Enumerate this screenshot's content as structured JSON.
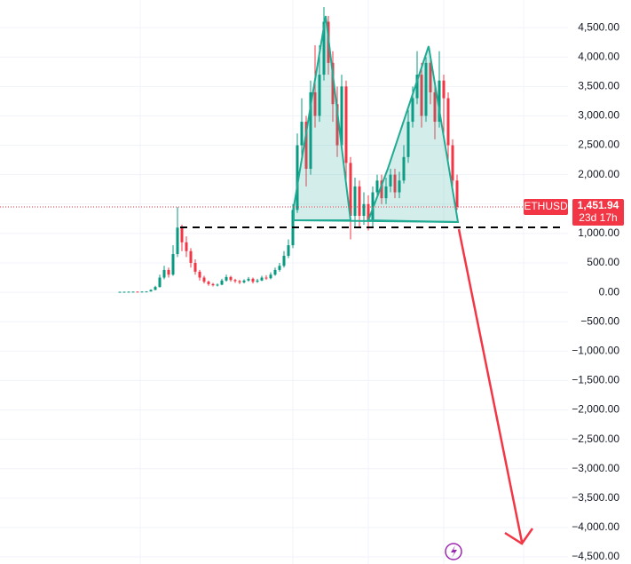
{
  "chart_data": {
    "type": "candlestick",
    "symbol": "ETHUSD",
    "last_price": {
      "value": 1451.94,
      "label": "1,451.94"
    },
    "countdown": "23d 17h",
    "up_color": "#089981",
    "down_color": "#f23645",
    "grid": true,
    "ylim": [
      -4620,
      4970
    ],
    "yticks": [
      {
        "value": -4500,
        "label": "−4,500.00"
      },
      {
        "value": -4000,
        "label": "−4,000.00"
      },
      {
        "value": -3500,
        "label": "−3,500.00"
      },
      {
        "value": -3000,
        "label": "−3,000.00"
      },
      {
        "value": -2500,
        "label": "−2,500.00"
      },
      {
        "value": -2000,
        "label": "−2,000.00"
      },
      {
        "value": -1500,
        "label": "−1,500.00"
      },
      {
        "value": -1000,
        "label": "−1,000.00"
      },
      {
        "value": -500,
        "label": "−500.00"
      },
      {
        "value": 0,
        "label": "0.00"
      },
      {
        "value": 500,
        "label": "500.00"
      },
      {
        "value": 1000,
        "label": "1,000.00"
      },
      {
        "value": 1500,
        "label": "1,500.00"
      },
      {
        "value": 2000,
        "label": "2,000.00"
      },
      {
        "value": 2500,
        "label": "2,500.00"
      },
      {
        "value": 3000,
        "label": "3,000.00"
      },
      {
        "value": 3500,
        "label": "3,500.00"
      },
      {
        "value": 4000,
        "label": "4,000.00"
      },
      {
        "value": 4500,
        "label": "4,500.00"
      }
    ],
    "open": [
      8,
      8,
      9,
      10,
      11,
      10,
      12,
      14,
      40,
      90,
      250,
      380,
      300,
      650,
      1100,
      850,
      700,
      500,
      350,
      250,
      180,
      140,
      120,
      130,
      200,
      260,
      210,
      190,
      170,
      200,
      230,
      180,
      200,
      250,
      240,
      300,
      380,
      450,
      620,
      800,
      1400,
      2500,
      2900,
      2100,
      3400,
      3000,
      3700,
      4600,
      3900,
      3200,
      2500,
      3500,
      2200,
      1300,
      1800,
      1300,
      1500,
      1200,
      1700,
      1900,
      1600,
      1800,
      2000,
      1700,
      1900,
      2300,
      2900,
      3300,
      3700,
      3000,
      3900,
      3400,
      2900,
      3600,
      3300,
      2500,
      1900
    ],
    "high": [
      10,
      11,
      12,
      13,
      13,
      15,
      18,
      50,
      110,
      300,
      450,
      420,
      800,
      1450,
      1150,
      950,
      750,
      560,
      380,
      280,
      200,
      160,
      150,
      230,
      300,
      280,
      230,
      210,
      220,
      260,
      250,
      230,
      280,
      290,
      340,
      420,
      500,
      700,
      900,
      1500,
      2700,
      3300,
      3000,
      3600,
      4200,
      4200,
      4850,
      4700,
      4100,
      3500,
      3700,
      3600,
      2300,
      1950,
      1900,
      1700,
      1650,
      1800,
      2000,
      2000,
      1950,
      2100,
      2100,
      2050,
      2500,
      3100,
      3500,
      4100,
      3900,
      4000,
      4000,
      3500,
      4100,
      3700,
      3400,
      2600,
      2000
    ],
    "low": [
      6,
      7,
      8,
      9,
      8,
      9,
      11,
      12,
      35,
      80,
      220,
      250,
      280,
      600,
      700,
      600,
      420,
      300,
      200,
      150,
      110,
      100,
      100,
      120,
      180,
      180,
      160,
      140,
      150,
      180,
      150,
      160,
      190,
      210,
      220,
      280,
      350,
      420,
      580,
      750,
      1350,
      2300,
      1800,
      2000,
      2800,
      2900,
      3600,
      3700,
      2900,
      2300,
      2400,
      1900,
      900,
      1100,
      1100,
      1150,
      1050,
      1100,
      1600,
      1500,
      1500,
      1700,
      1600,
      1600,
      1850,
      2200,
      2800,
      3200,
      2800,
      2900,
      3200,
      2600,
      2800,
      2700,
      2200,
      1700,
      1400
    ],
    "close": [
      8,
      9,
      10,
      11,
      10,
      12,
      14,
      40,
      90,
      250,
      380,
      300,
      650,
      1100,
      850,
      700,
      500,
      350,
      250,
      180,
      140,
      120,
      130,
      200,
      260,
      210,
      190,
      170,
      200,
      230,
      180,
      200,
      250,
      240,
      300,
      380,
      450,
      620,
      800,
      1400,
      2500,
      2900,
      2100,
      3400,
      3000,
      3700,
      4600,
      3900,
      3200,
      2500,
      3500,
      2200,
      1300,
      1800,
      1300,
      1500,
      1200,
      1700,
      1900,
      1600,
      1800,
      2000,
      1700,
      1900,
      2300,
      2900,
      3300,
      3700,
      3000,
      3900,
      3400,
      2900,
      3600,
      3300,
      2500,
      1900,
      1452
    ]
  }
}
